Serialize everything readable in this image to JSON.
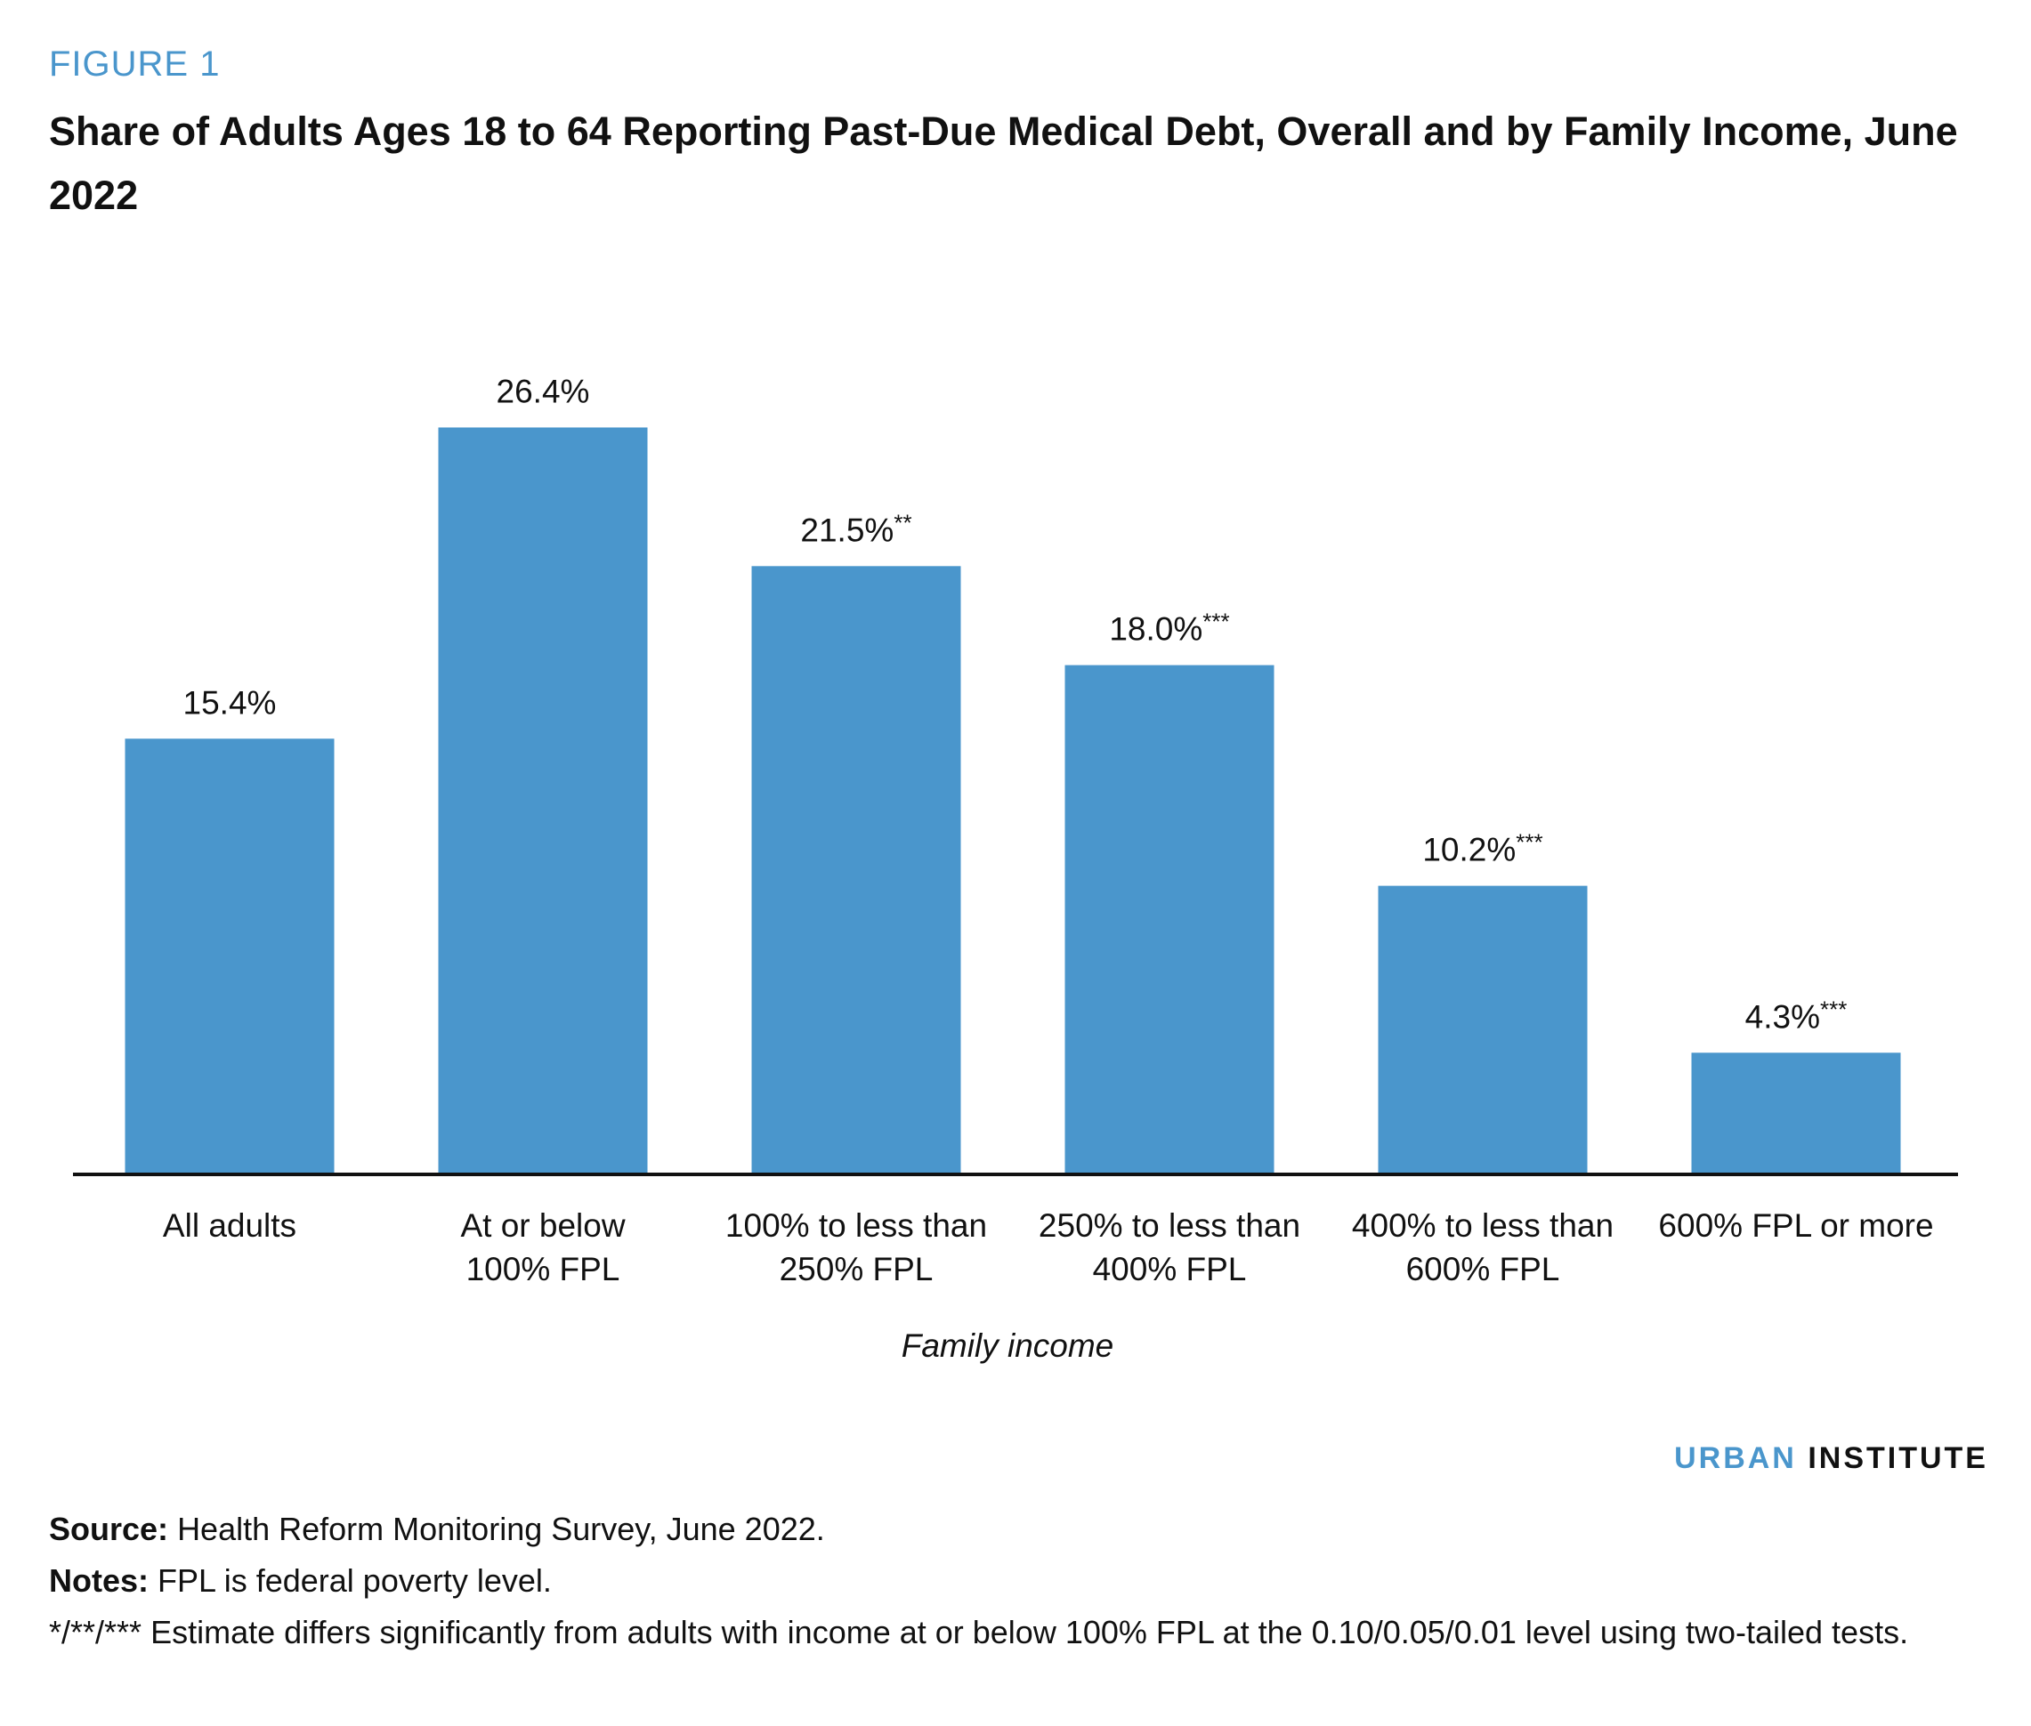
{
  "header": {
    "figure_label": "FIGURE 1",
    "title": "Share of Adults Ages 18 to 64 Reporting Past-Due Medical Debt, Overall and by Family Income, June 2022"
  },
  "chart_data": {
    "type": "bar",
    "categories": [
      [
        "All adults"
      ],
      [
        "At or below",
        "100% FPL"
      ],
      [
        "100% to less than",
        "250% FPL"
      ],
      [
        "250% to less than",
        "400% FPL"
      ],
      [
        "400% to less than",
        "600% FPL"
      ],
      [
        "600% FPL or more"
      ]
    ],
    "values": [
      15.4,
      26.4,
      21.5,
      18.0,
      10.2,
      4.3
    ],
    "value_labels": [
      "15.4%",
      "26.4%",
      "21.5%",
      "18.0%",
      "10.2%",
      "4.3%"
    ],
    "significance": [
      "",
      "",
      "**",
      "***",
      "***",
      "***"
    ],
    "xlabel": "Family income",
    "ylabel": "",
    "ylim": [
      0,
      30
    ],
    "grid": false,
    "bar_color": "#4a96cc"
  },
  "brand": {
    "part1": "URBAN",
    "part2": "INSTITUTE"
  },
  "footer": {
    "source_label": "Source:",
    "source_text": "Health Reform Monitoring Survey, June 2022.",
    "notes_label": "Notes:",
    "notes_text": "FPL is federal poverty level.",
    "significance_text": "*/**/*** Estimate differs significantly from adults with income at or below 100% FPL at the 0.10/0.05/0.01 level using two-tailed tests."
  }
}
